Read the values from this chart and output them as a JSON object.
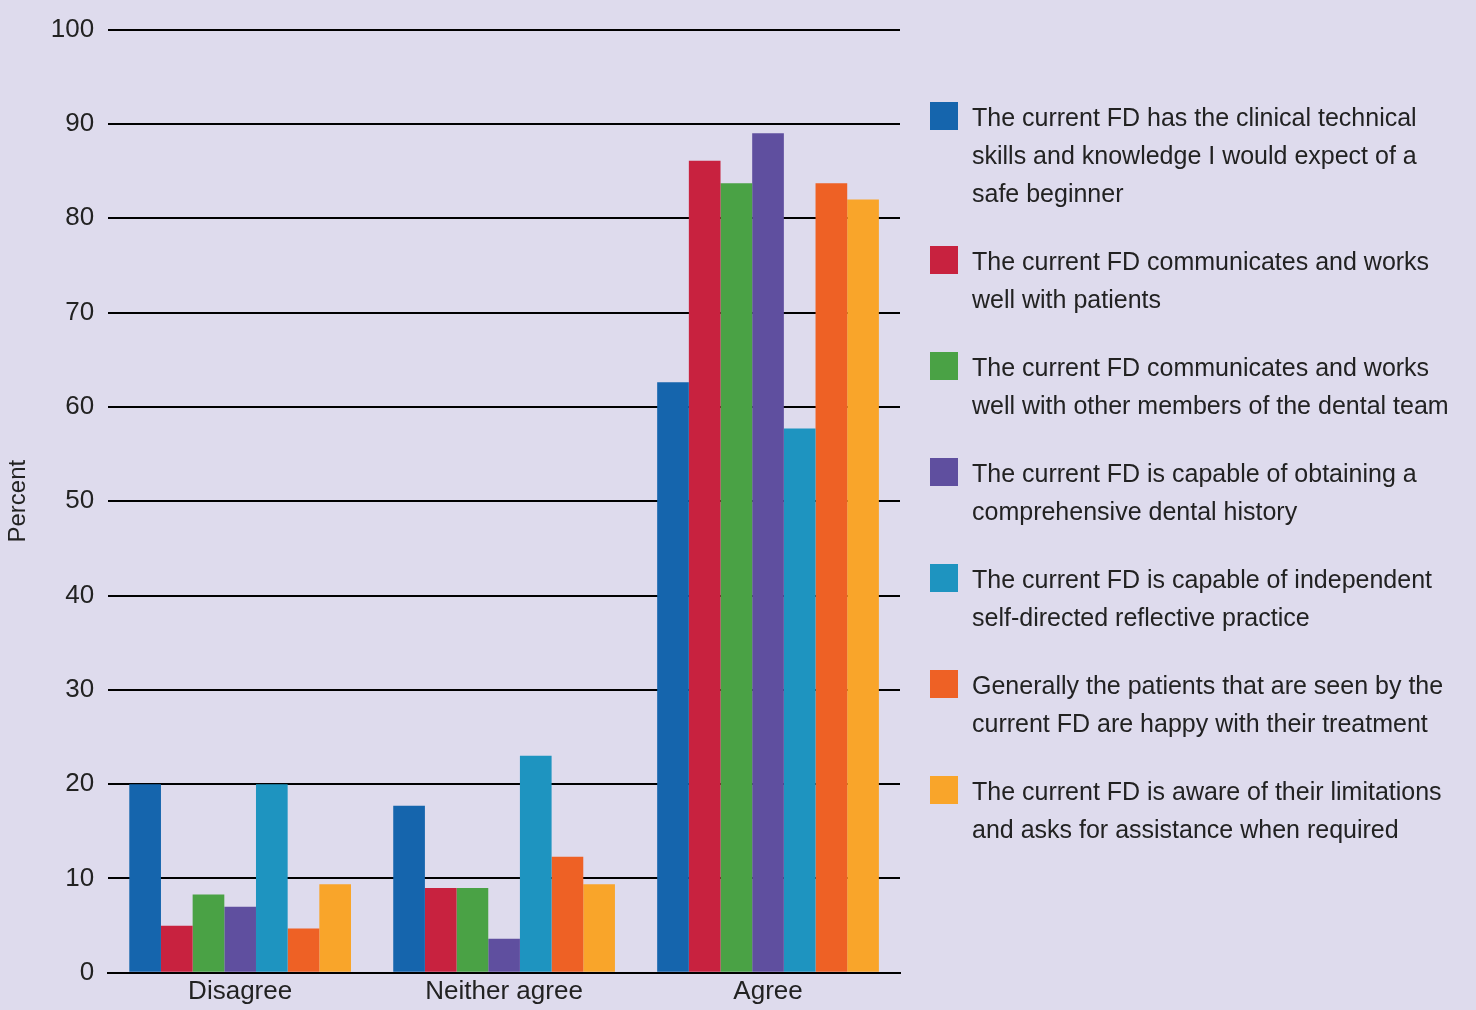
{
  "chart_data": {
    "type": "bar",
    "ylabel": "Percent",
    "categories": [
      "Disagree",
      "Neither agree",
      "Agree"
    ],
    "series": [
      {
        "name": "The current FD has the clinical technical skills and knowledge I would expect of a safe beginner",
        "color": "#1565ad",
        "values": [
          20,
          17.7,
          62.6
        ]
      },
      {
        "name": "The current FD communicates and works well with patients",
        "color": "#c8223f",
        "values": [
          5,
          9,
          86.1
        ]
      },
      {
        "name": "The current FD communicates and works well with other members of the dental team",
        "color": "#4aa245",
        "values": [
          8.3,
          9,
          83.7
        ]
      },
      {
        "name": "The current FD is capable of obtaining a comprehensive dental history",
        "color": "#5f4f9f",
        "values": [
          7,
          3.6,
          89
        ]
      },
      {
        "name": "The current FD is capable of independent self-directed reflective practice",
        "color": "#1e94c0",
        "values": [
          20,
          23,
          57.7
        ]
      },
      {
        "name": "Generally the patients that are seen by the current FD are happy with their treatment",
        "color": "#ee6125",
        "values": [
          4.7,
          12.3,
          83.7
        ]
      },
      {
        "name": "The current FD is aware of their limitations and asks for assistance when required",
        "color": "#f9a52a",
        "values": [
          9.4,
          9.4,
          82
        ]
      }
    ],
    "ylim": [
      0,
      100
    ],
    "yticks": [
      0,
      10,
      20,
      30,
      40,
      50,
      60,
      70,
      80,
      90,
      100
    ],
    "grid": "y",
    "legend": "right"
  }
}
